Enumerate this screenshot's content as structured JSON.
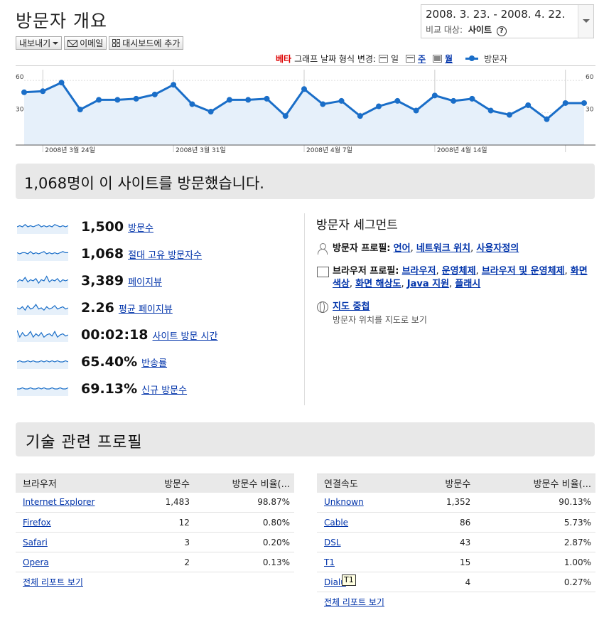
{
  "page_title": "방문자 개요",
  "date_selector": {
    "range": "2008. 3. 23. - 2008. 4. 22.",
    "compare_label": "비교 대상:",
    "compare_value": "사이트",
    "help": "?"
  },
  "toolbar": {
    "export": "내보내기",
    "email": "이메일",
    "dashboard": "대시보드에 추가"
  },
  "graph_controls": {
    "beta": "베타",
    "label": "그래프 날짜 형식 변경:",
    "day": "일",
    "week": "주",
    "month": "월",
    "legend": "방문자"
  },
  "chart_data": {
    "type": "line",
    "series": [
      {
        "name": "방문자",
        "values": [
          49,
          50,
          58,
          33,
          42,
          42,
          43,
          47,
          56,
          38,
          31,
          42,
          42,
          43,
          27,
          52,
          38,
          41,
          27,
          36,
          41,
          32,
          46,
          41,
          43,
          32,
          28,
          37,
          24,
          39,
          39
        ]
      }
    ],
    "y_ticks": [
      "60",
      "30"
    ],
    "ylim": [
      0,
      70
    ],
    "x_labels": [
      "2008년 3월 24일",
      "2008년 3월 31일",
      "2008년 4월 7일",
      "2008년 4월 14일"
    ],
    "color": "#1a6ec8",
    "fill": "#e6f0fa"
  },
  "summary": {
    "text": "1,068명이 이 사이트를 방문했습니다."
  },
  "metrics": [
    {
      "value": "1,500",
      "label": "방문수",
      "spark": [
        5,
        6,
        5,
        7,
        5,
        6,
        5,
        6,
        7,
        5,
        6,
        5,
        6,
        5,
        7,
        6,
        5,
        6,
        5,
        6
      ]
    },
    {
      "value": "1,068",
      "label": "절대 고유 방문자수",
      "spark": [
        6,
        5,
        6,
        6,
        5,
        7,
        5,
        6,
        5,
        6,
        7,
        5,
        6,
        5,
        6,
        5,
        6,
        7,
        6,
        6
      ]
    },
    {
      "value": "3,389",
      "label": "페이지뷰",
      "spark": [
        4,
        6,
        5,
        8,
        4,
        6,
        5,
        7,
        3,
        6,
        5,
        9,
        4,
        6,
        5,
        7,
        4,
        6,
        5,
        6
      ]
    },
    {
      "value": "2.26",
      "label": "평균 페이지뷰",
      "spark": [
        5,
        4,
        6,
        3,
        7,
        4,
        5,
        8,
        4,
        5,
        3,
        6,
        4,
        5,
        7,
        4,
        5,
        6,
        4,
        5
      ]
    },
    {
      "value": "00:02:18",
      "label": "사이트 방문 시간",
      "spark": [
        9,
        3,
        7,
        4,
        5,
        8,
        3,
        6,
        4,
        7,
        3,
        5,
        6,
        4,
        8,
        3,
        5,
        6,
        4,
        5
      ]
    },
    {
      "value": "65.40%",
      "label": "반송률",
      "spark": [
        5,
        6,
        5,
        5,
        6,
        5,
        6,
        5,
        5,
        6,
        5,
        6,
        5,
        6,
        5,
        6,
        5,
        5,
        6,
        5
      ]
    },
    {
      "value": "69.13%",
      "label": "신규 방문수",
      "spark": [
        5,
        5,
        6,
        5,
        5,
        6,
        5,
        5,
        6,
        5,
        6,
        5,
        5,
        6,
        5,
        5,
        6,
        5,
        5,
        6
      ]
    }
  ],
  "segments": {
    "title": "방문자 세그먼트",
    "visitor_profile": {
      "label": "방문자 프로필:",
      "links": [
        "언어",
        "네트워크 위치",
        "사용자정의"
      ]
    },
    "browser_profile": {
      "label": "브라우저 프로필:",
      "links": [
        "브라우저",
        "운영체제",
        "브라우저 및 운영체제",
        "화면색상",
        "화면 해상도",
        "Java 지원",
        "플래시"
      ]
    },
    "map_overlay": {
      "link": "지도 중첩",
      "sub": "방문자 위치를 지도로 보기"
    }
  },
  "tech_profile": {
    "title": "기술 관련 프로필"
  },
  "browser_table": {
    "headers": [
      "브라우저",
      "방문수",
      "방문수 비율(..."
    ],
    "rows": [
      [
        "Internet Explorer",
        "1,483",
        "98.87%"
      ],
      [
        "Firefox",
        "12",
        "0.80%"
      ],
      [
        "Safari",
        "3",
        "0.20%"
      ],
      [
        "Opera",
        "2",
        "0.13%"
      ]
    ],
    "full_report": "전체 리포트 보기"
  },
  "connection_table": {
    "headers": [
      "연결속도",
      "방문수",
      "방문수 비율(..."
    ],
    "rows": [
      [
        "Unknown",
        "1,352",
        "90.13%"
      ],
      [
        "Cable",
        "86",
        "5.73%"
      ],
      [
        "DSL",
        "43",
        "2.87%"
      ],
      [
        "T1",
        "15",
        "1.00%"
      ],
      [
        "Dialup",
        "4",
        "0.27%"
      ]
    ],
    "dialup_visible": "Dialu",
    "full_report": "전체 리포트 보기"
  },
  "tooltip": "T1"
}
